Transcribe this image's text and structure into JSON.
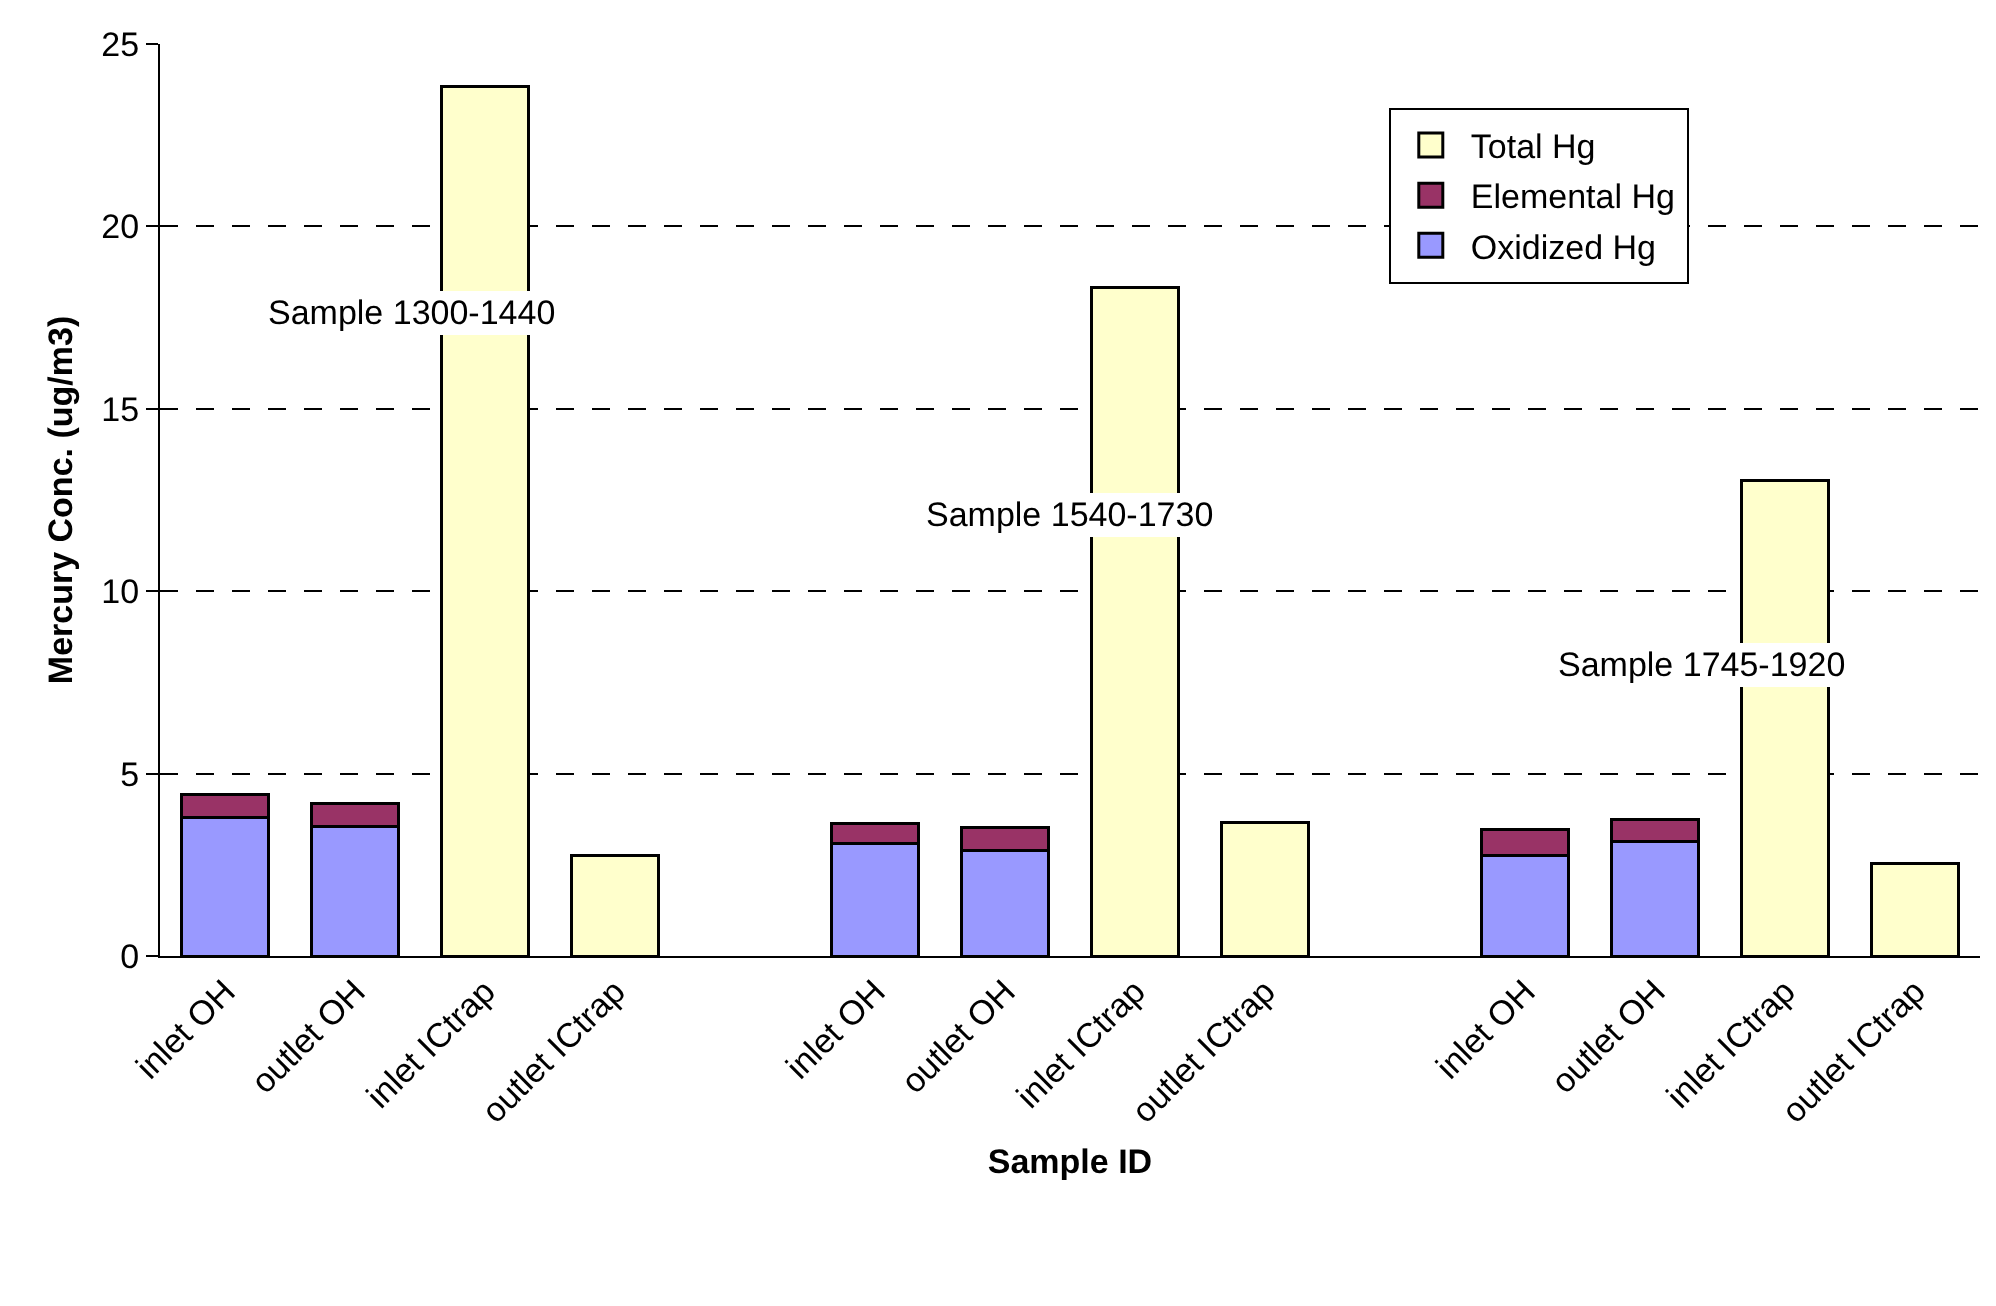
{
  "chart_data": {
    "type": "bar",
    "stacked": true,
    "xlabel": "Sample ID",
    "ylabel": "Mercury Conc. (ug/m3)",
    "categories": [
      "inlet OH",
      "outlet OH",
      "inlet ICtrap",
      "outlet ICtrap",
      null,
      "inlet OH",
      "outlet OH",
      "inlet ICtrap",
      "outlet ICtrap",
      null,
      "inlet OH",
      "outlet OH",
      "inlet ICtrap",
      "outlet ICtrap"
    ],
    "series": [
      {
        "name": "Oxidized Hg",
        "color": "#9999ff",
        "values": [
          3.81,
          3.55,
          null,
          null,
          null,
          3.09,
          2.9,
          null,
          null,
          null,
          2.75,
          3.15,
          null,
          null
        ]
      },
      {
        "name": "Elemental Hg",
        "color": "#993366",
        "values": [
          0.62,
          0.63,
          null,
          null,
          null,
          0.54,
          0.62,
          null,
          null,
          null,
          0.73,
          0.59,
          null,
          null
        ]
      },
      {
        "name": "Total Hg",
        "color": "#ffffcc",
        "values": [
          null,
          null,
          23.83,
          2.76,
          null,
          null,
          null,
          18.33,
          3.66,
          null,
          null,
          null,
          13.04,
          2.53
        ]
      }
    ],
    "ylim": [
      0,
      25
    ],
    "yticks": [
      0,
      5,
      10,
      15,
      20,
      25
    ],
    "grid": "y",
    "legend": "top right",
    "annotations": [
      "Sample 1300-1440",
      "Sample 1540-1730",
      "Sample 1745-1920"
    ]
  }
}
